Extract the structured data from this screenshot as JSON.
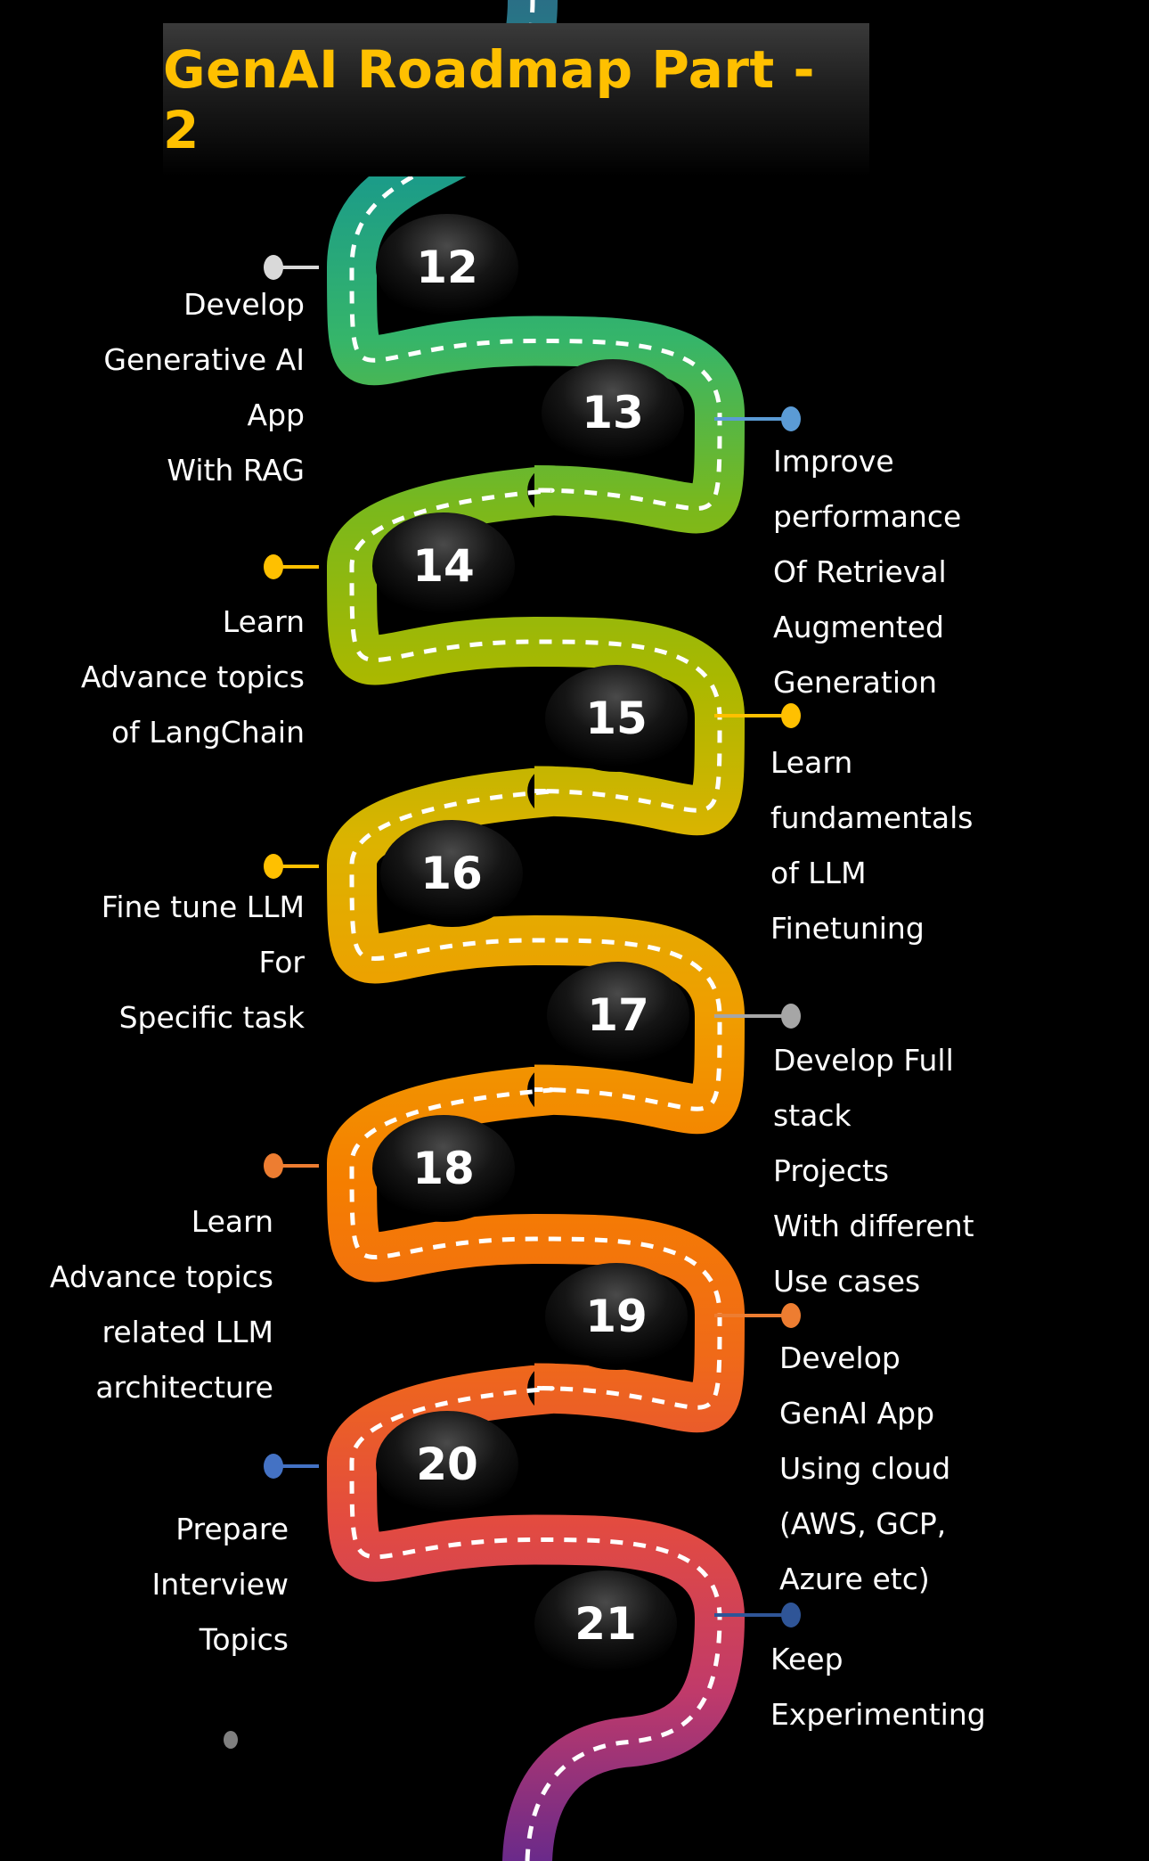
{
  "title": "GenAI Roadmap Part - 2",
  "title_color": "#ffc000",
  "road_colors": [
    "#2a6f86",
    "#1a9a8a",
    "#35b56a",
    "#7ab81c",
    "#a9b800",
    "#ddb300",
    "#f09d00",
    "#f57e00",
    "#f06a18",
    "#e34b40",
    "#c03a6a",
    "#6a2a8a"
  ],
  "steps": [
    {
      "number": "12",
      "side": "left",
      "dot_color": "#d9d9d9",
      "lines": [
        "Develop",
        "Generative AI",
        "App",
        "With RAG"
      ]
    },
    {
      "number": "13",
      "side": "right",
      "dot_color": "#5b9bd5",
      "lines": [
        "Improve",
        "performance",
        "Of Retrieval",
        "Augmented",
        "Generation"
      ]
    },
    {
      "number": "14",
      "side": "left",
      "dot_color": "#ffc000",
      "lines": [
        "Learn",
        "Advance topics",
        "of LangChain"
      ]
    },
    {
      "number": "15",
      "side": "right",
      "dot_color": "#ffc000",
      "lines": [
        "Learn",
        "fundamentals",
        "of LLM",
        "Finetuning"
      ]
    },
    {
      "number": "16",
      "side": "left",
      "dot_color": "#ffc000",
      "lines": [
        "Fine tune LLM",
        "For",
        "Specific task"
      ]
    },
    {
      "number": "17",
      "side": "right",
      "dot_color": "#a6a6a6",
      "lines": [
        "Develop Full",
        "stack",
        "Projects",
        "With different",
        "Use cases"
      ]
    },
    {
      "number": "18",
      "side": "left",
      "dot_color": "#ed7d31",
      "lines": [
        "Learn",
        "Advance topics",
        "related LLM",
        "architecture"
      ]
    },
    {
      "number": "19",
      "side": "right",
      "dot_color": "#ed7d31",
      "lines": [
        "Develop",
        "GenAI App",
        "Using  cloud",
        "(AWS, GCP,",
        "Azure etc)"
      ]
    },
    {
      "number": "20",
      "side": "left",
      "dot_color": "#4472c4",
      "lines": [
        "Prepare",
        "Interview",
        "Topics"
      ]
    },
    {
      "number": "21",
      "side": "right",
      "dot_color": "#2f5597",
      "lines": [
        "Keep",
        "Experimenting"
      ]
    }
  ]
}
